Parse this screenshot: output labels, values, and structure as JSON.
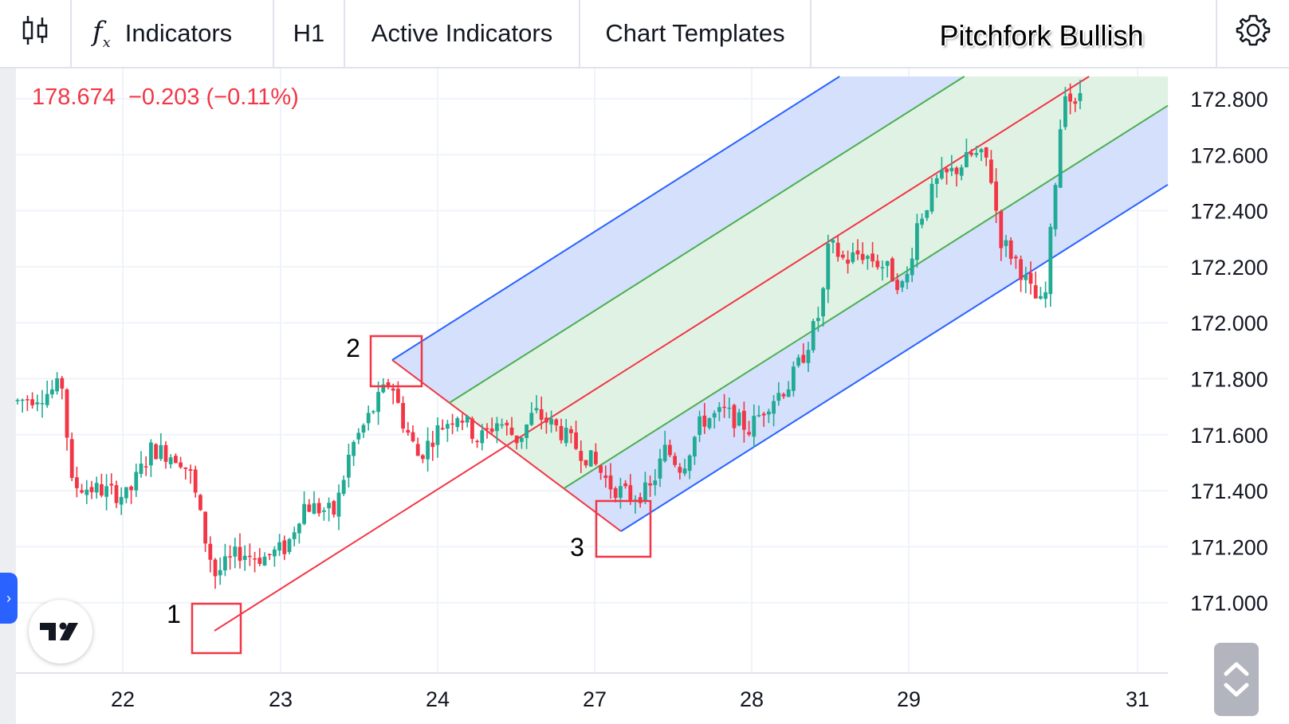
{
  "toolbar": {
    "chart_type_icon": "candlestick-icon",
    "fx_icon": "fx-icon",
    "indicators_label": "Indicators",
    "interval": "H1",
    "active_indicators_label": "Active Indicators",
    "chart_templates_label": "Chart Templates",
    "title": "Pitchfork Bullish",
    "settings_icon": "gear-icon"
  },
  "price_readout": {
    "last": "178.674",
    "change": "−0.203 (−0.11%)"
  },
  "annotations": [
    "1",
    "2",
    "3"
  ],
  "colors": {
    "up": "#22ab94",
    "down": "#f23645",
    "median_line": "#f23645",
    "inner_lines": "#4caf50",
    "outer_lines": "#2962ff",
    "inner_fill": "#e0f2e3",
    "outer_fill": "#d2defc"
  },
  "icons": {
    "logo": "tradingview-logo-icon",
    "side_tab": "chevron-right-icon",
    "scroll": "chevron-up-down-icon"
  },
  "chart_data": {
    "type": "candlestick",
    "title": "Pitchfork Bullish",
    "interval": "H1",
    "x_tick_labels": [
      "22",
      "23",
      "24",
      "27",
      "28",
      "29",
      "31"
    ],
    "y_tick_labels": [
      "172.800",
      "172.600",
      "172.400",
      "172.200",
      "172.000",
      "171.800",
      "171.600",
      "171.400",
      "171.200",
      "171.000"
    ],
    "ylim": [
      170.8,
      172.9
    ],
    "grid": true,
    "pitchfork": {
      "pivots": [
        {
          "label": "1",
          "x": "22 (late)",
          "y": 170.97
        },
        {
          "label": "2",
          "x": "23 (late)",
          "y": 171.9
        },
        {
          "label": "3",
          "x": "27",
          "y": 171.31
        }
      ]
    }
  }
}
